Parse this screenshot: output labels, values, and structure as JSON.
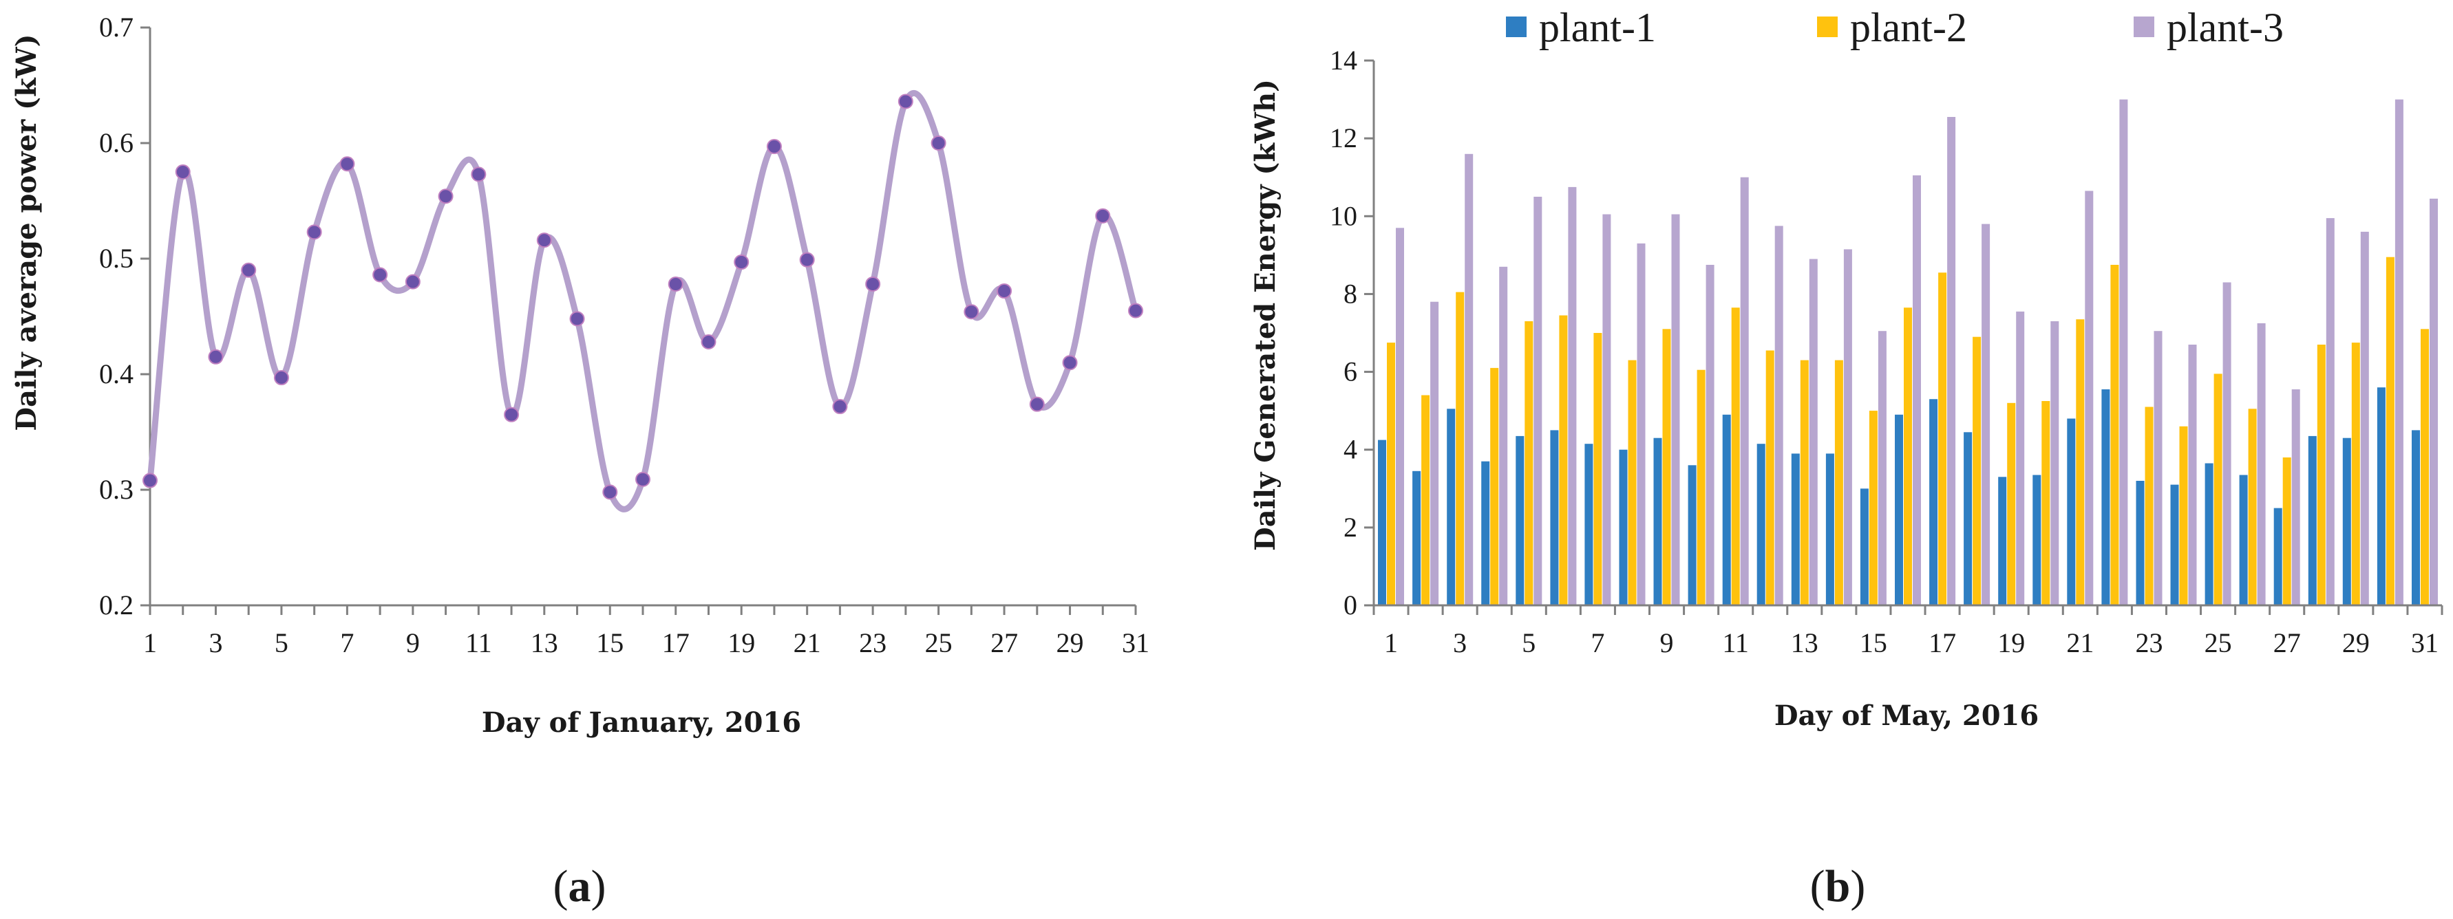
{
  "chart_data": [
    {
      "type": "line",
      "panel_label": "a",
      "title": "",
      "xlabel": "Day of January, 2016",
      "ylabel": "Daily average  power (kW)",
      "ylim": [
        0.2,
        0.7
      ],
      "yticks": [
        "0.2",
        "0.3",
        "0.4",
        "0.5",
        "0.6",
        "0.7"
      ],
      "xlim": [
        1,
        31
      ],
      "xticks": [
        "1",
        "3",
        "5",
        "7",
        "9",
        "11",
        "13",
        "15",
        "17",
        "19",
        "21",
        "23",
        "25",
        "27",
        "29",
        "31"
      ],
      "grid": false,
      "smooth": true,
      "colors": {
        "line": "#b4a0cc",
        "marker": "#6a52a8"
      },
      "x": [
        1,
        2,
        3,
        4,
        5,
        6,
        7,
        8,
        9,
        10,
        11,
        12,
        13,
        14,
        15,
        16,
        17,
        18,
        19,
        20,
        21,
        22,
        23,
        24,
        25,
        26,
        27,
        28,
        29,
        30,
        31
      ],
      "values": [
        0.308,
        0.575,
        0.415,
        0.49,
        0.397,
        0.523,
        0.582,
        0.486,
        0.48,
        0.554,
        0.573,
        0.365,
        0.516,
        0.448,
        0.298,
        0.309,
        0.478,
        0.428,
        0.497,
        0.597,
        0.499,
        0.372,
        0.478,
        0.636,
        0.6,
        0.454,
        0.472,
        0.374,
        0.41,
        0.537,
        0.455
      ]
    },
    {
      "type": "bar",
      "panel_label": "b",
      "title": "",
      "xlabel": "Day of May, 2016",
      "ylabel": "Daily Generated Energy (kWh)",
      "ylim": [
        0,
        14
      ],
      "yticks": [
        "0",
        "2",
        "4",
        "6",
        "8",
        "10",
        "12",
        "14"
      ],
      "xticks": [
        "1",
        "3",
        "5",
        "7",
        "9",
        "11",
        "13",
        "15",
        "17",
        "19",
        "21",
        "23",
        "25",
        "27",
        "29",
        "31"
      ],
      "grid": false,
      "legend_position": "top",
      "categories": [
        "1",
        "2",
        "3",
        "4",
        "5",
        "6",
        "7",
        "8",
        "9",
        "10",
        "11",
        "12",
        "13",
        "14",
        "15",
        "16",
        "17",
        "18",
        "19",
        "20",
        "21",
        "22",
        "23",
        "24",
        "25",
        "26",
        "27",
        "28",
        "29",
        "30",
        "31"
      ],
      "series": [
        {
          "name": "plant-1",
          "color": "#2e7ec2",
          "values": [
            4.25,
            3.45,
            5.05,
            3.7,
            4.35,
            4.5,
            4.15,
            4.0,
            4.3,
            3.6,
            4.9,
            4.15,
            3.9,
            3.9,
            3.0,
            4.9,
            5.3,
            4.45,
            3.3,
            3.35,
            4.8,
            5.55,
            3.2,
            3.1,
            3.65,
            3.35,
            2.5,
            4.35,
            4.3,
            5.6,
            4.5
          ]
        },
        {
          "name": "plant-2",
          "color": "#ffc20e",
          "values": [
            6.75,
            5.4,
            8.05,
            6.1,
            7.3,
            7.45,
            7.0,
            6.3,
            7.1,
            6.05,
            7.65,
            6.55,
            6.3,
            6.3,
            5.0,
            7.65,
            8.55,
            6.9,
            5.2,
            5.25,
            7.35,
            8.75,
            5.1,
            4.6,
            5.95,
            5.05,
            3.8,
            6.7,
            6.75,
            8.95,
            7.1
          ]
        },
        {
          "name": "plant-3",
          "color": "#b7a6cf",
          "values": [
            9.7,
            7.8,
            11.6,
            8.7,
            10.5,
            10.75,
            10.05,
            9.3,
            10.05,
            8.75,
            11.0,
            9.75,
            8.9,
            9.15,
            7.05,
            11.05,
            12.55,
            9.8,
            7.55,
            7.3,
            10.65,
            13.0,
            7.05,
            6.7,
            8.3,
            7.25,
            5.55,
            9.95,
            9.6,
            13.0,
            10.45
          ]
        }
      ]
    }
  ]
}
